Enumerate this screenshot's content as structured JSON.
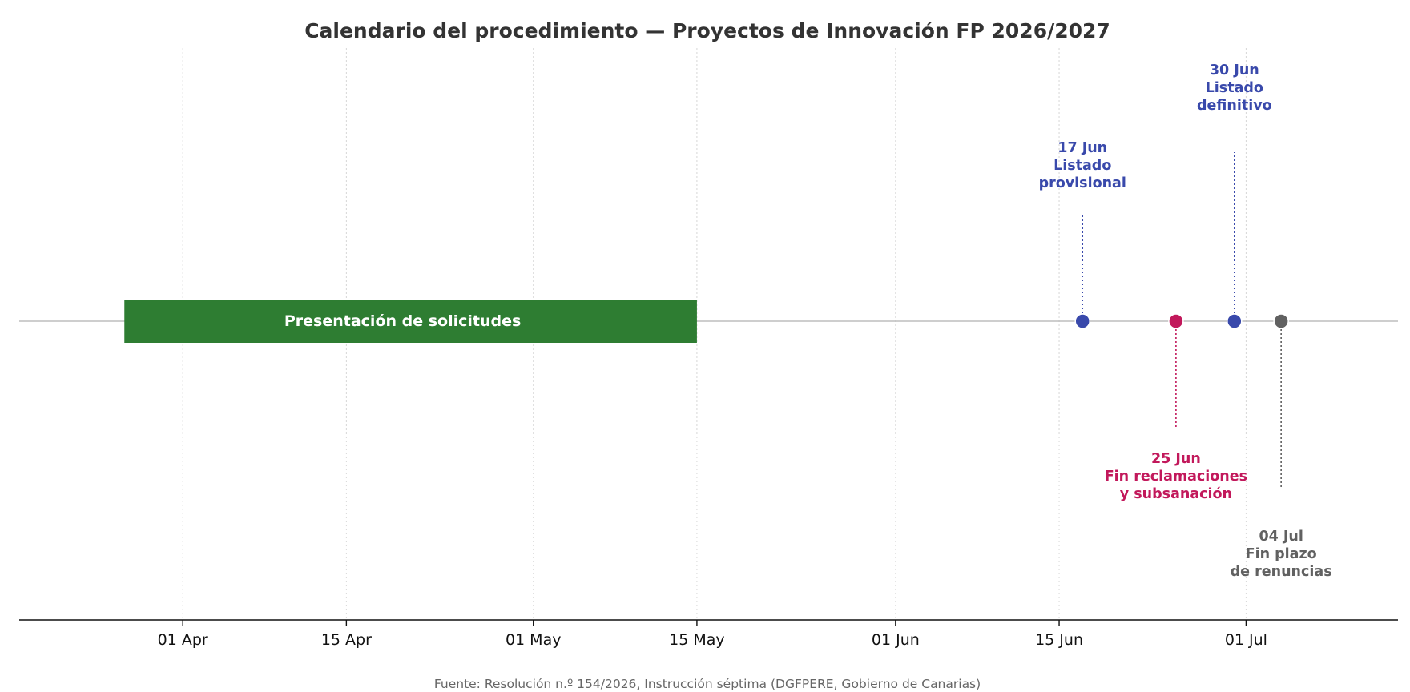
{
  "chart_data": {
    "type": "timeline",
    "title": "Calendario del procedimiento — Proyectos de Innovación FP 2026/2027",
    "source": "Fuente: Resolución n.º 154/2026, Instrucción séptima (DGFPERE, Gobierno de Canarias)",
    "xlim": [
      "2026-03-18",
      "2026-07-14"
    ],
    "x_ticks": [
      {
        "date": "2026-04-01",
        "label": "01 Apr"
      },
      {
        "date": "2026-04-15",
        "label": "15 Apr"
      },
      {
        "date": "2026-05-01",
        "label": "01 May"
      },
      {
        "date": "2026-05-15",
        "label": "15 May"
      },
      {
        "date": "2026-06-01",
        "label": "01 Jun"
      },
      {
        "date": "2026-06-15",
        "label": "15 Jun"
      },
      {
        "date": "2026-07-01",
        "label": "01 Jul"
      }
    ],
    "grid": "vertical-dotted",
    "periods": [
      {
        "label": "Presentación de solicitudes",
        "start": "2026-03-27",
        "end": "2026-05-15",
        "color": "#2e7d32"
      }
    ],
    "milestones": [
      {
        "date": "2026-06-17",
        "lines": [
          "17 Jun",
          "Listado",
          "provisional"
        ],
        "position": "above",
        "color": "#3949ab"
      },
      {
        "date": "2026-06-25",
        "lines": [
          "25 Jun",
          "Fin reclamaciones",
          "y subsanación"
        ],
        "position": "below",
        "color": "#c2185b"
      },
      {
        "date": "2026-06-30",
        "lines": [
          "30 Jun",
          "Listado",
          "definitivo"
        ],
        "position": "above",
        "color": "#3949ab"
      },
      {
        "date": "2026-07-04",
        "lines": [
          "04 Jul",
          "Fin plazo",
          "de renuncias"
        ],
        "position": "below",
        "color": "#616161"
      }
    ]
  }
}
